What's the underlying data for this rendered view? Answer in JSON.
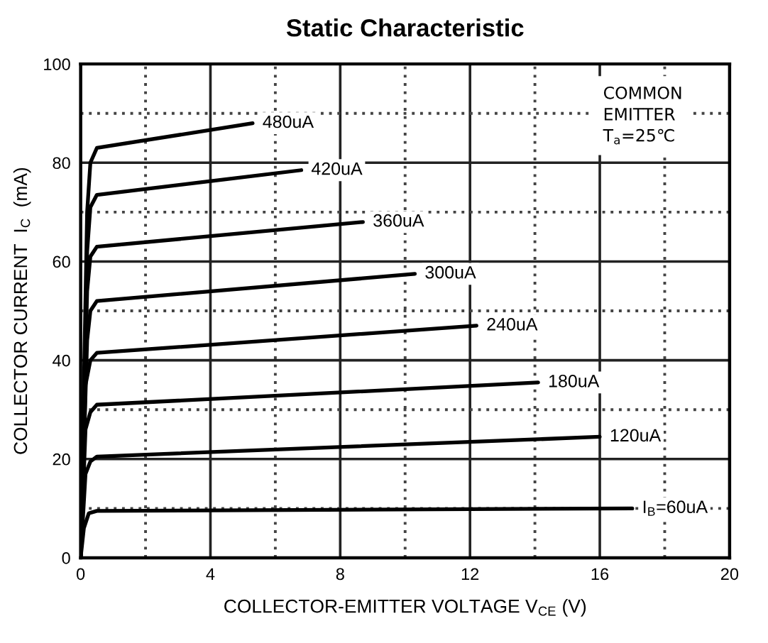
{
  "chart_data": {
    "type": "line",
    "title": "Static Characteristic",
    "xlabel": "COLLECTOR-EMITTER VOLTAGE V$_{CE}$ (V)",
    "ylabel": "COLLECTOR CURRENT  I$_{C}$  (mA)",
    "annotations": [
      "COMMON\nEMITTER\nT$_{a}$=25℃"
    ],
    "xlim": [
      0,
      20
    ],
    "ylim": [
      0,
      100
    ],
    "xticks": [
      0,
      {
        "value": 2,
        "label": null
      },
      4,
      {
        "value": 6,
        "label": null
      },
      8,
      {
        "value": 10,
        "label": null
      },
      12,
      {
        "value": 14,
        "label": null
      },
      16,
      {
        "value": 18,
        "label": null
      },
      20
    ],
    "yticks": [
      0,
      {
        "value": 10,
        "label": null
      },
      20,
      {
        "value": 30,
        "label": null
      },
      40,
      {
        "value": 50,
        "label": null
      },
      60,
      {
        "value": 70,
        "label": null
      },
      80,
      {
        "value": 90,
        "label": null
      },
      100
    ],
    "grid": true,
    "legend": false,
    "marker": "none",
    "line_style": "solid",
    "series": [
      {
        "name": "480uA",
        "color": "#000000",
        "x": [
          0,
          0.2,
          0.3,
          0.5,
          5.3
        ],
        "values": [
          0,
          70,
          80,
          83,
          88
        ]
      },
      {
        "name": "420uA",
        "color": "#000000",
        "x": [
          0,
          0.2,
          0.3,
          0.5,
          6.8
        ],
        "values": [
          0,
          62,
          71,
          73.5,
          78.5
        ]
      },
      {
        "name": "360uA",
        "color": "#000000",
        "x": [
          0,
          0.2,
          0.3,
          0.5,
          8.7
        ],
        "values": [
          0,
          54,
          61,
          63,
          68
        ]
      },
      {
        "name": "300uA",
        "color": "#000000",
        "x": [
          0,
          0.2,
          0.3,
          0.5,
          10.3
        ],
        "values": [
          0,
          44,
          50,
          52,
          57.5
        ]
      },
      {
        "name": "240uA",
        "color": "#000000",
        "x": [
          0,
          0.15,
          0.3,
          0.5,
          12.2
        ],
        "values": [
          0,
          35,
          40,
          41.5,
          47
        ]
      },
      {
        "name": "180uA",
        "color": "#000000",
        "x": [
          0,
          0.15,
          0.3,
          0.5,
          14.1
        ],
        "values": [
          0,
          26,
          29.5,
          31,
          35.5
        ]
      },
      {
        "name": "120uA",
        "color": "#000000",
        "x": [
          0,
          0.15,
          0.3,
          0.5,
          16
        ],
        "values": [
          0,
          17,
          19.5,
          20.5,
          24.5
        ]
      },
      {
        "name": "I$_{B}$=60uA",
        "color": "#000000",
        "x": [
          0,
          0.1,
          0.25,
          0.5,
          17
        ],
        "values": [
          0,
          6,
          9,
          9.5,
          10
        ]
      }
    ]
  }
}
